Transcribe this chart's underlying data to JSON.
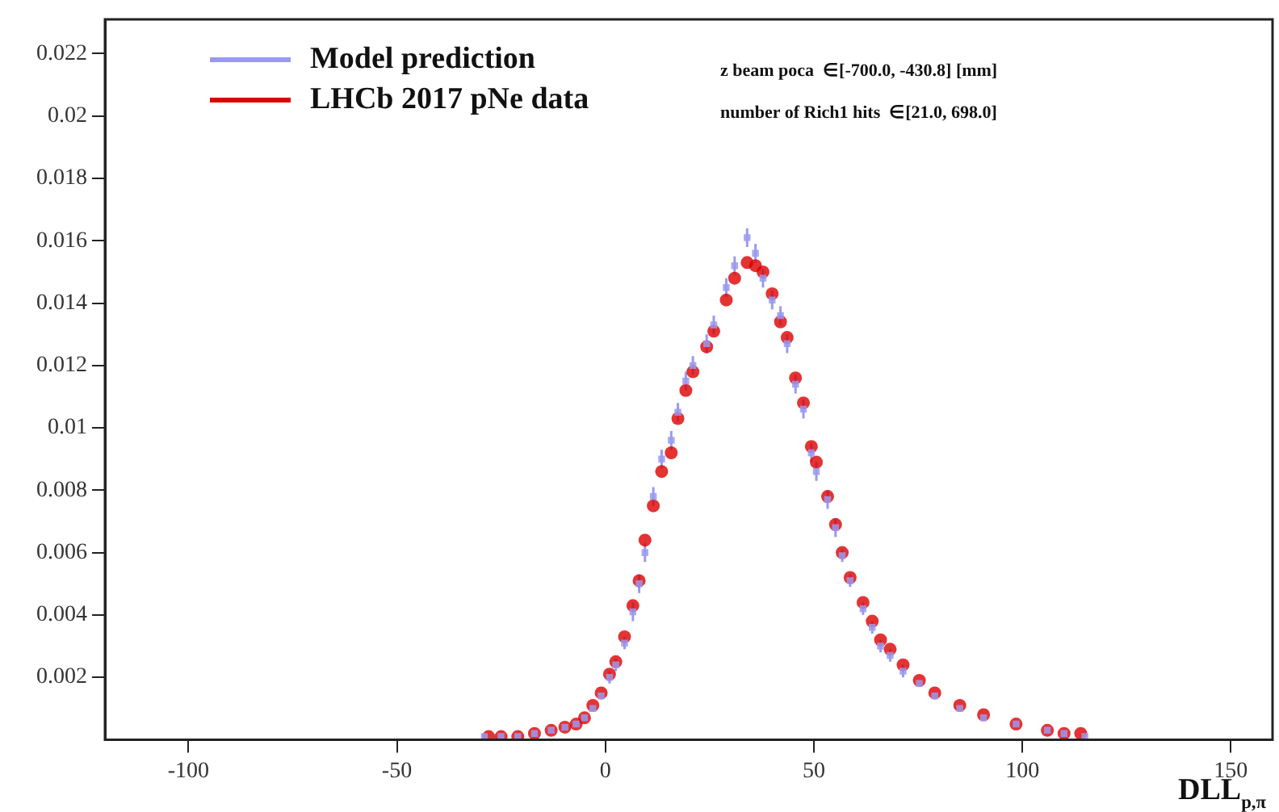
{
  "chart_data": {
    "type": "scatter",
    "xlabel": "DLL$_{p,π}$",
    "annotations": [
      "z beam poca  ∈[-700.0, -430.8] [mm]",
      "number of Rich1 hits  ∈[21.0, 698.0]"
    ],
    "legend": "top left",
    "xlim": [
      -120,
      160
    ],
    "xticks": [
      -100,
      -50,
      0,
      50,
      100,
      150
    ],
    "ylim": [
      0,
      0.0231
    ],
    "yticks": [
      0.002,
      0.004,
      0.006,
      0.008,
      0.01,
      0.012,
      0.014,
      0.016,
      0.018,
      0.02,
      0.022
    ],
    "series": [
      {
        "name": "Model prediction",
        "color": "#9a9af0",
        "marker": "square",
        "x": [
          -29,
          -25,
          -21,
          -17,
          -13,
          -9.7,
          -7,
          -5,
          -3,
          -1,
          1,
          2.5,
          4.6,
          6.6,
          8.1,
          9.5,
          11.5,
          13.5,
          15.8,
          17.4,
          19.3,
          21,
          24.3,
          26,
          29,
          31,
          34,
          36,
          37.8,
          40,
          42,
          43.6,
          45.6,
          47.5,
          49.4,
          50.6,
          53.3,
          55.2,
          56.8,
          58.7,
          61.8,
          64,
          66,
          68.3,
          71.4,
          75.3,
          79,
          85,
          90.7,
          98.5,
          106,
          110,
          115
        ],
        "values": [
          0.0001,
          0.0001,
          0.0001,
          0.0002,
          0.0003,
          0.0004,
          0.0005,
          0.0007,
          0.001,
          0.0014,
          0.002,
          0.0024,
          0.0031,
          0.0041,
          0.005,
          0.006,
          0.0078,
          0.009,
          0.0096,
          0.0105,
          0.0115,
          0.012,
          0.0127,
          0.0133,
          0.0145,
          0.0152,
          0.0161,
          0.0156,
          0.0148,
          0.0141,
          0.0136,
          0.0127,
          0.0114,
          0.0106,
          0.0092,
          0.0086,
          0.0077,
          0.0068,
          0.0059,
          0.0051,
          0.0042,
          0.0036,
          0.003,
          0.0027,
          0.0022,
          0.0018,
          0.0014,
          0.001,
          0.0007,
          0.0005,
          0.0003,
          0.0002,
          0.0001
        ],
        "errors": [
          null,
          null,
          null,
          null,
          null,
          null,
          null,
          null,
          null,
          null,
          0.0002,
          0.0002,
          0.0002,
          0.0003,
          0.0003,
          0.0003,
          0.0003,
          0.0003,
          0.0003,
          0.0003,
          0.0003,
          0.0003,
          0.0003,
          0.0003,
          0.0003,
          0.0003,
          0.0003,
          0.0003,
          0.0003,
          0.0003,
          0.0003,
          0.0003,
          0.0003,
          0.0003,
          0.0003,
          0.0003,
          0.0003,
          0.0003,
          0.0002,
          0.0002,
          0.0002,
          0.0002,
          0.0002,
          0.0002,
          0.0002,
          null,
          null,
          null,
          null,
          null,
          null,
          null,
          null
        ]
      },
      {
        "name": "LHCb 2017 pNe data",
        "color": "#dd0000",
        "marker": "circle",
        "x": [
          -28,
          -25,
          -21,
          -17,
          -13,
          -9.7,
          -7,
          -5,
          -3,
          -1,
          1,
          2.5,
          4.6,
          6.6,
          8.1,
          9.5,
          11.5,
          13.5,
          15.8,
          17.4,
          19.3,
          21,
          24.3,
          26,
          29,
          31,
          34,
          36,
          37.8,
          40,
          42,
          43.6,
          45.6,
          47.5,
          49.4,
          50.6,
          53.3,
          55.2,
          56.8,
          58.7,
          61.8,
          64,
          66,
          68.3,
          71.4,
          75.3,
          79,
          85,
          90.7,
          98.5,
          106,
          110,
          114
        ],
        "values": [
          0.0001,
          0.0001,
          0.0001,
          0.0002,
          0.0003,
          0.0004,
          0.0005,
          0.0007,
          0.0011,
          0.0015,
          0.0021,
          0.0025,
          0.0033,
          0.0043,
          0.0051,
          0.0064,
          0.0075,
          0.0086,
          0.0092,
          0.0103,
          0.0112,
          0.0118,
          0.0126,
          0.0131,
          0.0141,
          0.0148,
          0.0153,
          0.0152,
          0.015,
          0.0143,
          0.0134,
          0.0129,
          0.0116,
          0.0108,
          0.0094,
          0.0089,
          0.0078,
          0.0069,
          0.006,
          0.0052,
          0.0044,
          0.0038,
          0.0032,
          0.0029,
          0.0024,
          0.0019,
          0.0015,
          0.0011,
          0.0008,
          0.0005,
          0.0003,
          0.0002,
          0.0002
        ]
      }
    ]
  }
}
